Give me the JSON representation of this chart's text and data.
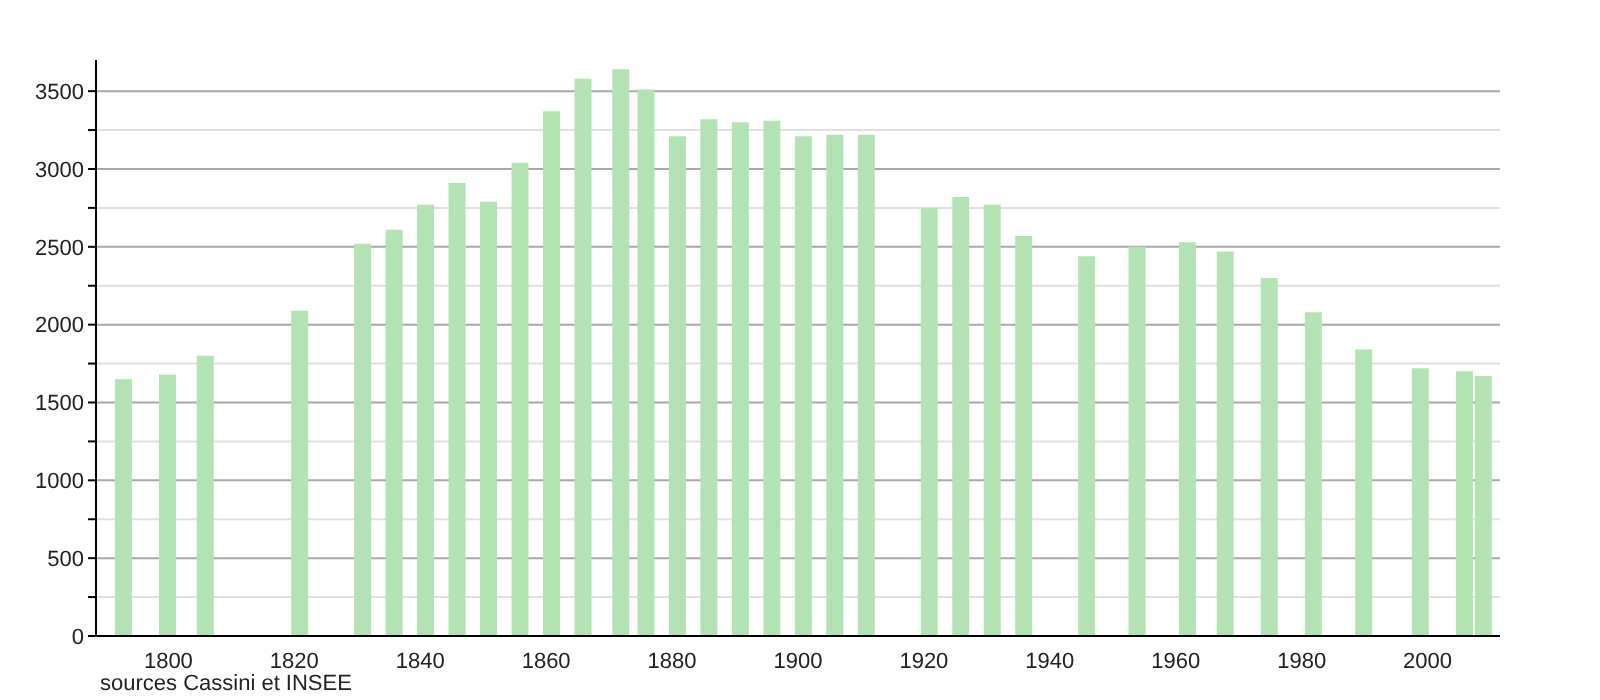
{
  "chart_data": {
    "type": "bar",
    "x": [
      1793,
      1800,
      1806,
      1821,
      1831,
      1836,
      1841,
      1846,
      1851,
      1856,
      1861,
      1866,
      1872,
      1876,
      1881,
      1886,
      1891,
      1896,
      1901,
      1906,
      1911,
      1921,
      1926,
      1931,
      1936,
      1946,
      1954,
      1962,
      1968,
      1975,
      1982,
      1990,
      1999,
      2006,
      2009
    ],
    "values": [
      1650,
      1680,
      1800,
      2090,
      2520,
      2610,
      2770,
      2910,
      2790,
      3040,
      3370,
      3580,
      3640,
      3510,
      3210,
      3320,
      3300,
      3310,
      3210,
      3220,
      3220,
      2750,
      2820,
      2770,
      2570,
      2440,
      2500,
      2530,
      2470,
      2300,
      2080,
      1840,
      1720,
      1700,
      1670
    ],
    "color": "#b3e3b3",
    "xlim": [
      1788.5,
      2011.5
    ],
    "xticks": [
      1800,
      1820,
      1840,
      1860,
      1880,
      1900,
      1920,
      1940,
      1960,
      1980,
      2000
    ],
    "ylim": [
      0,
      3700
    ],
    "yticks": [
      0,
      {
        "value": 250,
        "label": null
      },
      500,
      {
        "value": 750,
        "label": null
      },
      1000,
      {
        "value": 1250,
        "label": null
      },
      1500,
      {
        "value": 1750,
        "label": null
      },
      2000,
      {
        "value": 2250,
        "label": null
      },
      2500,
      {
        "value": 2750,
        "label": null
      },
      3000,
      {
        "value": 3250,
        "label": null
      },
      3500
    ],
    "grid": "y",
    "annotations": [
      "sources Cassini et INSEE"
    ]
  }
}
